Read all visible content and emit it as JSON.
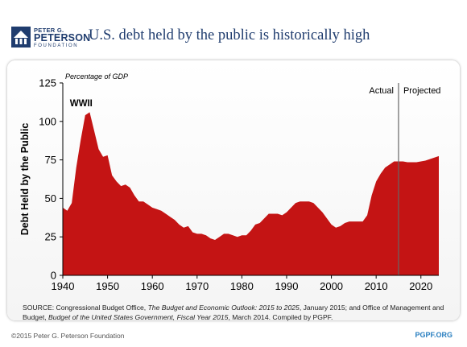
{
  "header": {
    "logo_line1": "PETER G.",
    "logo_line2": "PETERSON",
    "logo_line3": "FOUNDATION",
    "title": "U.S. debt held by the public is historically high"
  },
  "chart_data": {
    "type": "area",
    "subtitle": "Percentage of GDP",
    "ylabel": "Debt Held by the Public",
    "xlabel": "",
    "xlim": [
      1940,
      2024
    ],
    "ylim": [
      0,
      125
    ],
    "x_ticks": [
      "1940",
      "1950",
      "1960",
      "1970",
      "1980",
      "1990",
      "2000",
      "2010",
      "2020"
    ],
    "y_ticks": [
      "0",
      "25",
      "50",
      "75",
      "100",
      "125"
    ],
    "grid": false,
    "annotations": [
      {
        "text": "WWII",
        "x": 1945,
        "y": 112
      },
      {
        "text": "Actual",
        "x": 2015,
        "y": 120
      },
      {
        "text": "Projected",
        "x": 2015,
        "y": 120
      }
    ],
    "divider_year": 2015,
    "series": [
      {
        "fill_color": "#c41414",
        "x": [
          1940,
          1941,
          1942,
          1943,
          1944,
          1945,
          1946,
          1947,
          1948,
          1949,
          1950,
          1951,
          1952,
          1953,
          1954,
          1955,
          1956,
          1957,
          1958,
          1959,
          1960,
          1961,
          1962,
          1963,
          1964,
          1965,
          1966,
          1967,
          1968,
          1969,
          1970,
          1971,
          1972,
          1973,
          1974,
          1975,
          1976,
          1977,
          1978,
          1979,
          1980,
          1981,
          1982,
          1983,
          1984,
          1985,
          1986,
          1987,
          1988,
          1989,
          1990,
          1991,
          1992,
          1993,
          1994,
          1995,
          1996,
          1997,
          1998,
          1999,
          2000,
          2001,
          2002,
          2003,
          2004,
          2005,
          2006,
          2007,
          2008,
          2009,
          2010,
          2011,
          2012,
          2013,
          2014,
          2015,
          2016,
          2017,
          2018,
          2019,
          2020,
          2021,
          2022,
          2023,
          2024
        ],
        "values": [
          44,
          42,
          47,
          70,
          88,
          104,
          106,
          94,
          82,
          77,
          78,
          65,
          61,
          58,
          59,
          57,
          52,
          48,
          48,
          46,
          44,
          43,
          42,
          40,
          38,
          36,
          33,
          31,
          32,
          28,
          27,
          27,
          26,
          24,
          23,
          25,
          27,
          27,
          26,
          25,
          26,
          26,
          29,
          33,
          34,
          37,
          40,
          40,
          40,
          39,
          41,
          44,
          47,
          48,
          48,
          48,
          47,
          44,
          41,
          37,
          33,
          31,
          32,
          34,
          35,
          35,
          35,
          35,
          39,
          52,
          61,
          66,
          70,
          72,
          74,
          74,
          74,
          73.5,
          73.5,
          73.5,
          74,
          74.5,
          75.5,
          76.5,
          77.5
        ]
      }
    ]
  },
  "source_text": {
    "prefix": "SOURCE: Congressional Budget Office, ",
    "title1": "The Budget and Economic Outlook: 2015 to 2025",
    "middle": ", January 2015; and Office of Management and Budget, ",
    "title2": "Budget of the United States Government, Fiscal Year 2015",
    "suffix": ", March 2014. Compiled by PGPF."
  },
  "footer": {
    "copyright": "©2015 Peter G. Peterson Foundation",
    "site": "PGPF.ORG"
  },
  "colors": {
    "brand_blue": "#1f3c6e",
    "fill_red": "#c41414",
    "link_blue": "#2a7fc0"
  }
}
